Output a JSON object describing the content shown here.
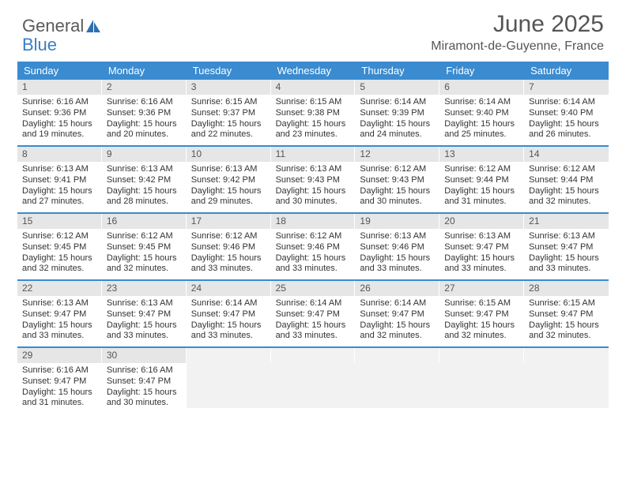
{
  "brand": {
    "part1": "General",
    "part2": "Blue"
  },
  "title": "June 2025",
  "location": "Miramont-de-Guyenne, France",
  "colors": {
    "header_blue": "#3a8bd0",
    "rule_blue": "#3a8bd0",
    "date_bg": "#e6e6e6",
    "empty_bg": "#f2f2f2",
    "text": "#333333",
    "brand_gray": "#5a5a5a",
    "brand_blue": "#3a7fc4"
  },
  "typography": {
    "body_fontsize": 11,
    "header_fontsize": 13,
    "title_fontsize": 30,
    "loc_fontsize": 16
  },
  "day_headers": [
    "Sunday",
    "Monday",
    "Tuesday",
    "Wednesday",
    "Thursday",
    "Friday",
    "Saturday"
  ],
  "weeks": [
    [
      {
        "n": "1",
        "sr": "Sunrise: 6:16 AM",
        "ss": "Sunset: 9:36 PM",
        "d1": "Daylight: 15 hours",
        "d2": "and 19 minutes."
      },
      {
        "n": "2",
        "sr": "Sunrise: 6:16 AM",
        "ss": "Sunset: 9:36 PM",
        "d1": "Daylight: 15 hours",
        "d2": "and 20 minutes."
      },
      {
        "n": "3",
        "sr": "Sunrise: 6:15 AM",
        "ss": "Sunset: 9:37 PM",
        "d1": "Daylight: 15 hours",
        "d2": "and 22 minutes."
      },
      {
        "n": "4",
        "sr": "Sunrise: 6:15 AM",
        "ss": "Sunset: 9:38 PM",
        "d1": "Daylight: 15 hours",
        "d2": "and 23 minutes."
      },
      {
        "n": "5",
        "sr": "Sunrise: 6:14 AM",
        "ss": "Sunset: 9:39 PM",
        "d1": "Daylight: 15 hours",
        "d2": "and 24 minutes."
      },
      {
        "n": "6",
        "sr": "Sunrise: 6:14 AM",
        "ss": "Sunset: 9:40 PM",
        "d1": "Daylight: 15 hours",
        "d2": "and 25 minutes."
      },
      {
        "n": "7",
        "sr": "Sunrise: 6:14 AM",
        "ss": "Sunset: 9:40 PM",
        "d1": "Daylight: 15 hours",
        "d2": "and 26 minutes."
      }
    ],
    [
      {
        "n": "8",
        "sr": "Sunrise: 6:13 AM",
        "ss": "Sunset: 9:41 PM",
        "d1": "Daylight: 15 hours",
        "d2": "and 27 minutes."
      },
      {
        "n": "9",
        "sr": "Sunrise: 6:13 AM",
        "ss": "Sunset: 9:42 PM",
        "d1": "Daylight: 15 hours",
        "d2": "and 28 minutes."
      },
      {
        "n": "10",
        "sr": "Sunrise: 6:13 AM",
        "ss": "Sunset: 9:42 PM",
        "d1": "Daylight: 15 hours",
        "d2": "and 29 minutes."
      },
      {
        "n": "11",
        "sr": "Sunrise: 6:13 AM",
        "ss": "Sunset: 9:43 PM",
        "d1": "Daylight: 15 hours",
        "d2": "and 30 minutes."
      },
      {
        "n": "12",
        "sr": "Sunrise: 6:12 AM",
        "ss": "Sunset: 9:43 PM",
        "d1": "Daylight: 15 hours",
        "d2": "and 30 minutes."
      },
      {
        "n": "13",
        "sr": "Sunrise: 6:12 AM",
        "ss": "Sunset: 9:44 PM",
        "d1": "Daylight: 15 hours",
        "d2": "and 31 minutes."
      },
      {
        "n": "14",
        "sr": "Sunrise: 6:12 AM",
        "ss": "Sunset: 9:44 PM",
        "d1": "Daylight: 15 hours",
        "d2": "and 32 minutes."
      }
    ],
    [
      {
        "n": "15",
        "sr": "Sunrise: 6:12 AM",
        "ss": "Sunset: 9:45 PM",
        "d1": "Daylight: 15 hours",
        "d2": "and 32 minutes."
      },
      {
        "n": "16",
        "sr": "Sunrise: 6:12 AM",
        "ss": "Sunset: 9:45 PM",
        "d1": "Daylight: 15 hours",
        "d2": "and 32 minutes."
      },
      {
        "n": "17",
        "sr": "Sunrise: 6:12 AM",
        "ss": "Sunset: 9:46 PM",
        "d1": "Daylight: 15 hours",
        "d2": "and 33 minutes."
      },
      {
        "n": "18",
        "sr": "Sunrise: 6:12 AM",
        "ss": "Sunset: 9:46 PM",
        "d1": "Daylight: 15 hours",
        "d2": "and 33 minutes."
      },
      {
        "n": "19",
        "sr": "Sunrise: 6:13 AM",
        "ss": "Sunset: 9:46 PM",
        "d1": "Daylight: 15 hours",
        "d2": "and 33 minutes."
      },
      {
        "n": "20",
        "sr": "Sunrise: 6:13 AM",
        "ss": "Sunset: 9:47 PM",
        "d1": "Daylight: 15 hours",
        "d2": "and 33 minutes."
      },
      {
        "n": "21",
        "sr": "Sunrise: 6:13 AM",
        "ss": "Sunset: 9:47 PM",
        "d1": "Daylight: 15 hours",
        "d2": "and 33 minutes."
      }
    ],
    [
      {
        "n": "22",
        "sr": "Sunrise: 6:13 AM",
        "ss": "Sunset: 9:47 PM",
        "d1": "Daylight: 15 hours",
        "d2": "and 33 minutes."
      },
      {
        "n": "23",
        "sr": "Sunrise: 6:13 AM",
        "ss": "Sunset: 9:47 PM",
        "d1": "Daylight: 15 hours",
        "d2": "and 33 minutes."
      },
      {
        "n": "24",
        "sr": "Sunrise: 6:14 AM",
        "ss": "Sunset: 9:47 PM",
        "d1": "Daylight: 15 hours",
        "d2": "and 33 minutes."
      },
      {
        "n": "25",
        "sr": "Sunrise: 6:14 AM",
        "ss": "Sunset: 9:47 PM",
        "d1": "Daylight: 15 hours",
        "d2": "and 33 minutes."
      },
      {
        "n": "26",
        "sr": "Sunrise: 6:14 AM",
        "ss": "Sunset: 9:47 PM",
        "d1": "Daylight: 15 hours",
        "d2": "and 32 minutes."
      },
      {
        "n": "27",
        "sr": "Sunrise: 6:15 AM",
        "ss": "Sunset: 9:47 PM",
        "d1": "Daylight: 15 hours",
        "d2": "and 32 minutes."
      },
      {
        "n": "28",
        "sr": "Sunrise: 6:15 AM",
        "ss": "Sunset: 9:47 PM",
        "d1": "Daylight: 15 hours",
        "d2": "and 32 minutes."
      }
    ],
    [
      {
        "n": "29",
        "sr": "Sunrise: 6:16 AM",
        "ss": "Sunset: 9:47 PM",
        "d1": "Daylight: 15 hours",
        "d2": "and 31 minutes."
      },
      {
        "n": "30",
        "sr": "Sunrise: 6:16 AM",
        "ss": "Sunset: 9:47 PM",
        "d1": "Daylight: 15 hours",
        "d2": "and 30 minutes."
      },
      {
        "empty": true
      },
      {
        "empty": true
      },
      {
        "empty": true
      },
      {
        "empty": true
      },
      {
        "empty": true
      }
    ]
  ]
}
